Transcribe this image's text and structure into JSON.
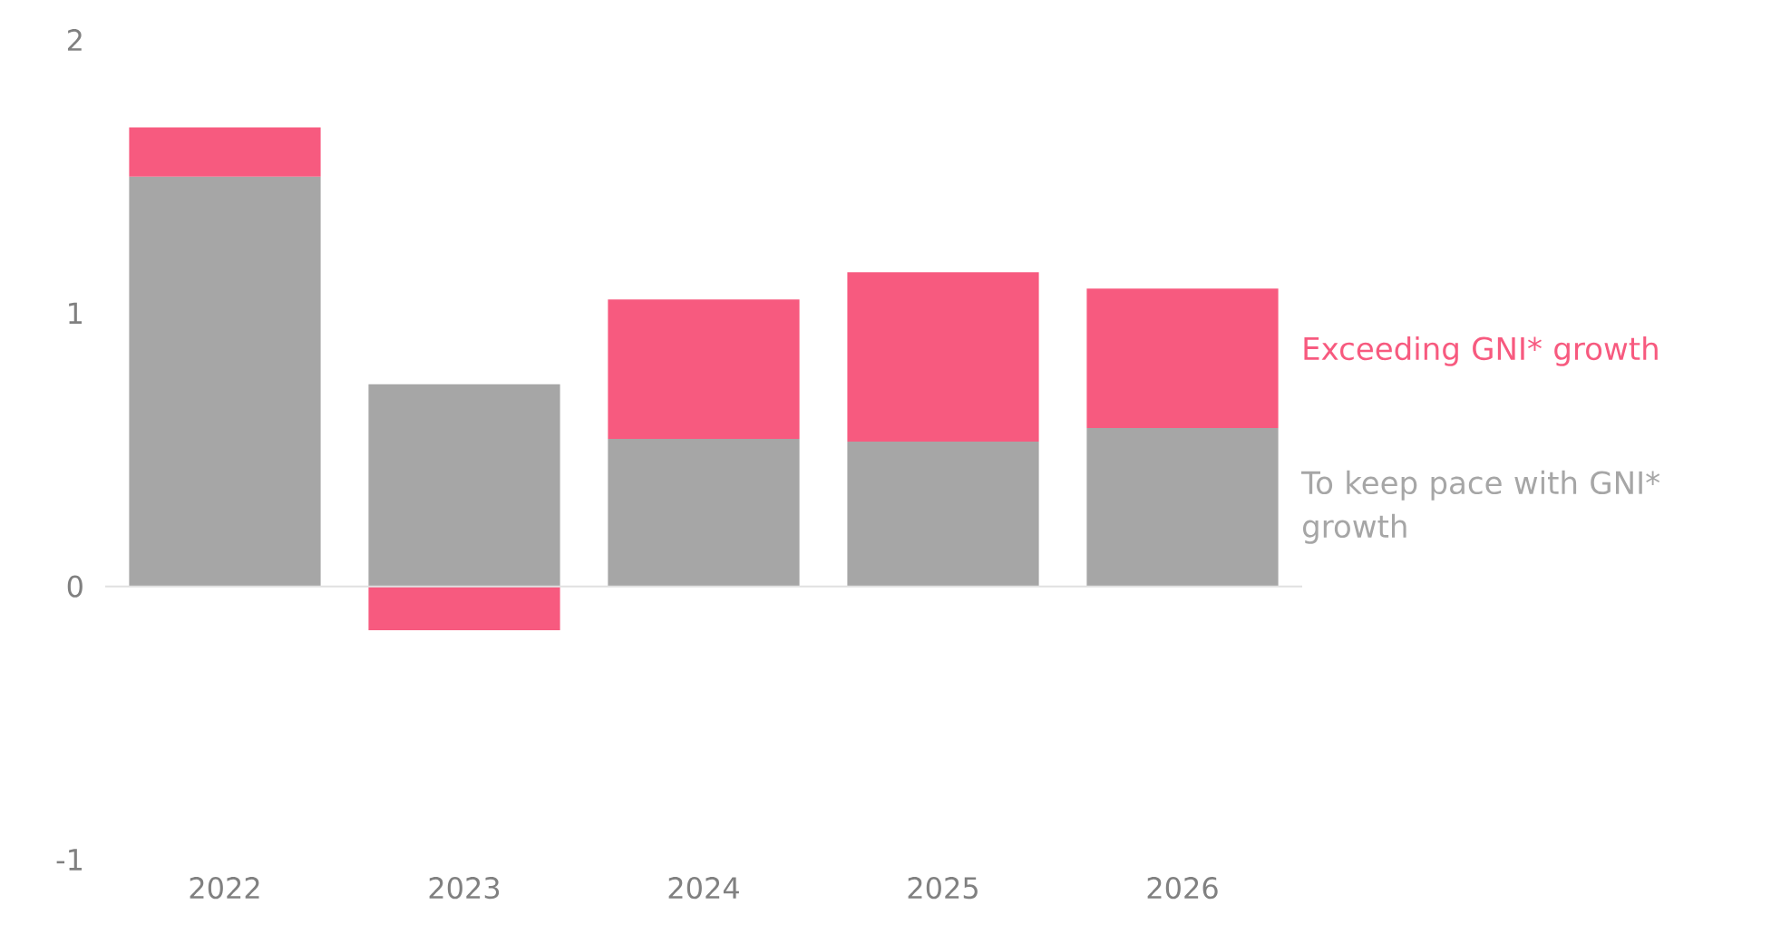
{
  "chart_data": {
    "type": "bar",
    "stacked": true,
    "categories": [
      "2022",
      "2023",
      "2024",
      "2025",
      "2026"
    ],
    "series": [
      {
        "name": "To keep pace with GNI* growth",
        "color": "#a6a6a6",
        "values": [
          1.5,
          0.74,
          0.54,
          0.53,
          0.58
        ]
      },
      {
        "name": "Exceeding GNI* growth",
        "color": "#f75a7f",
        "values": [
          0.18,
          -0.16,
          0.51,
          0.62,
          0.51
        ]
      }
    ],
    "ylim": [
      -1,
      2
    ],
    "yticks": [
      -1,
      0,
      1,
      2
    ],
    "legend": "right"
  }
}
